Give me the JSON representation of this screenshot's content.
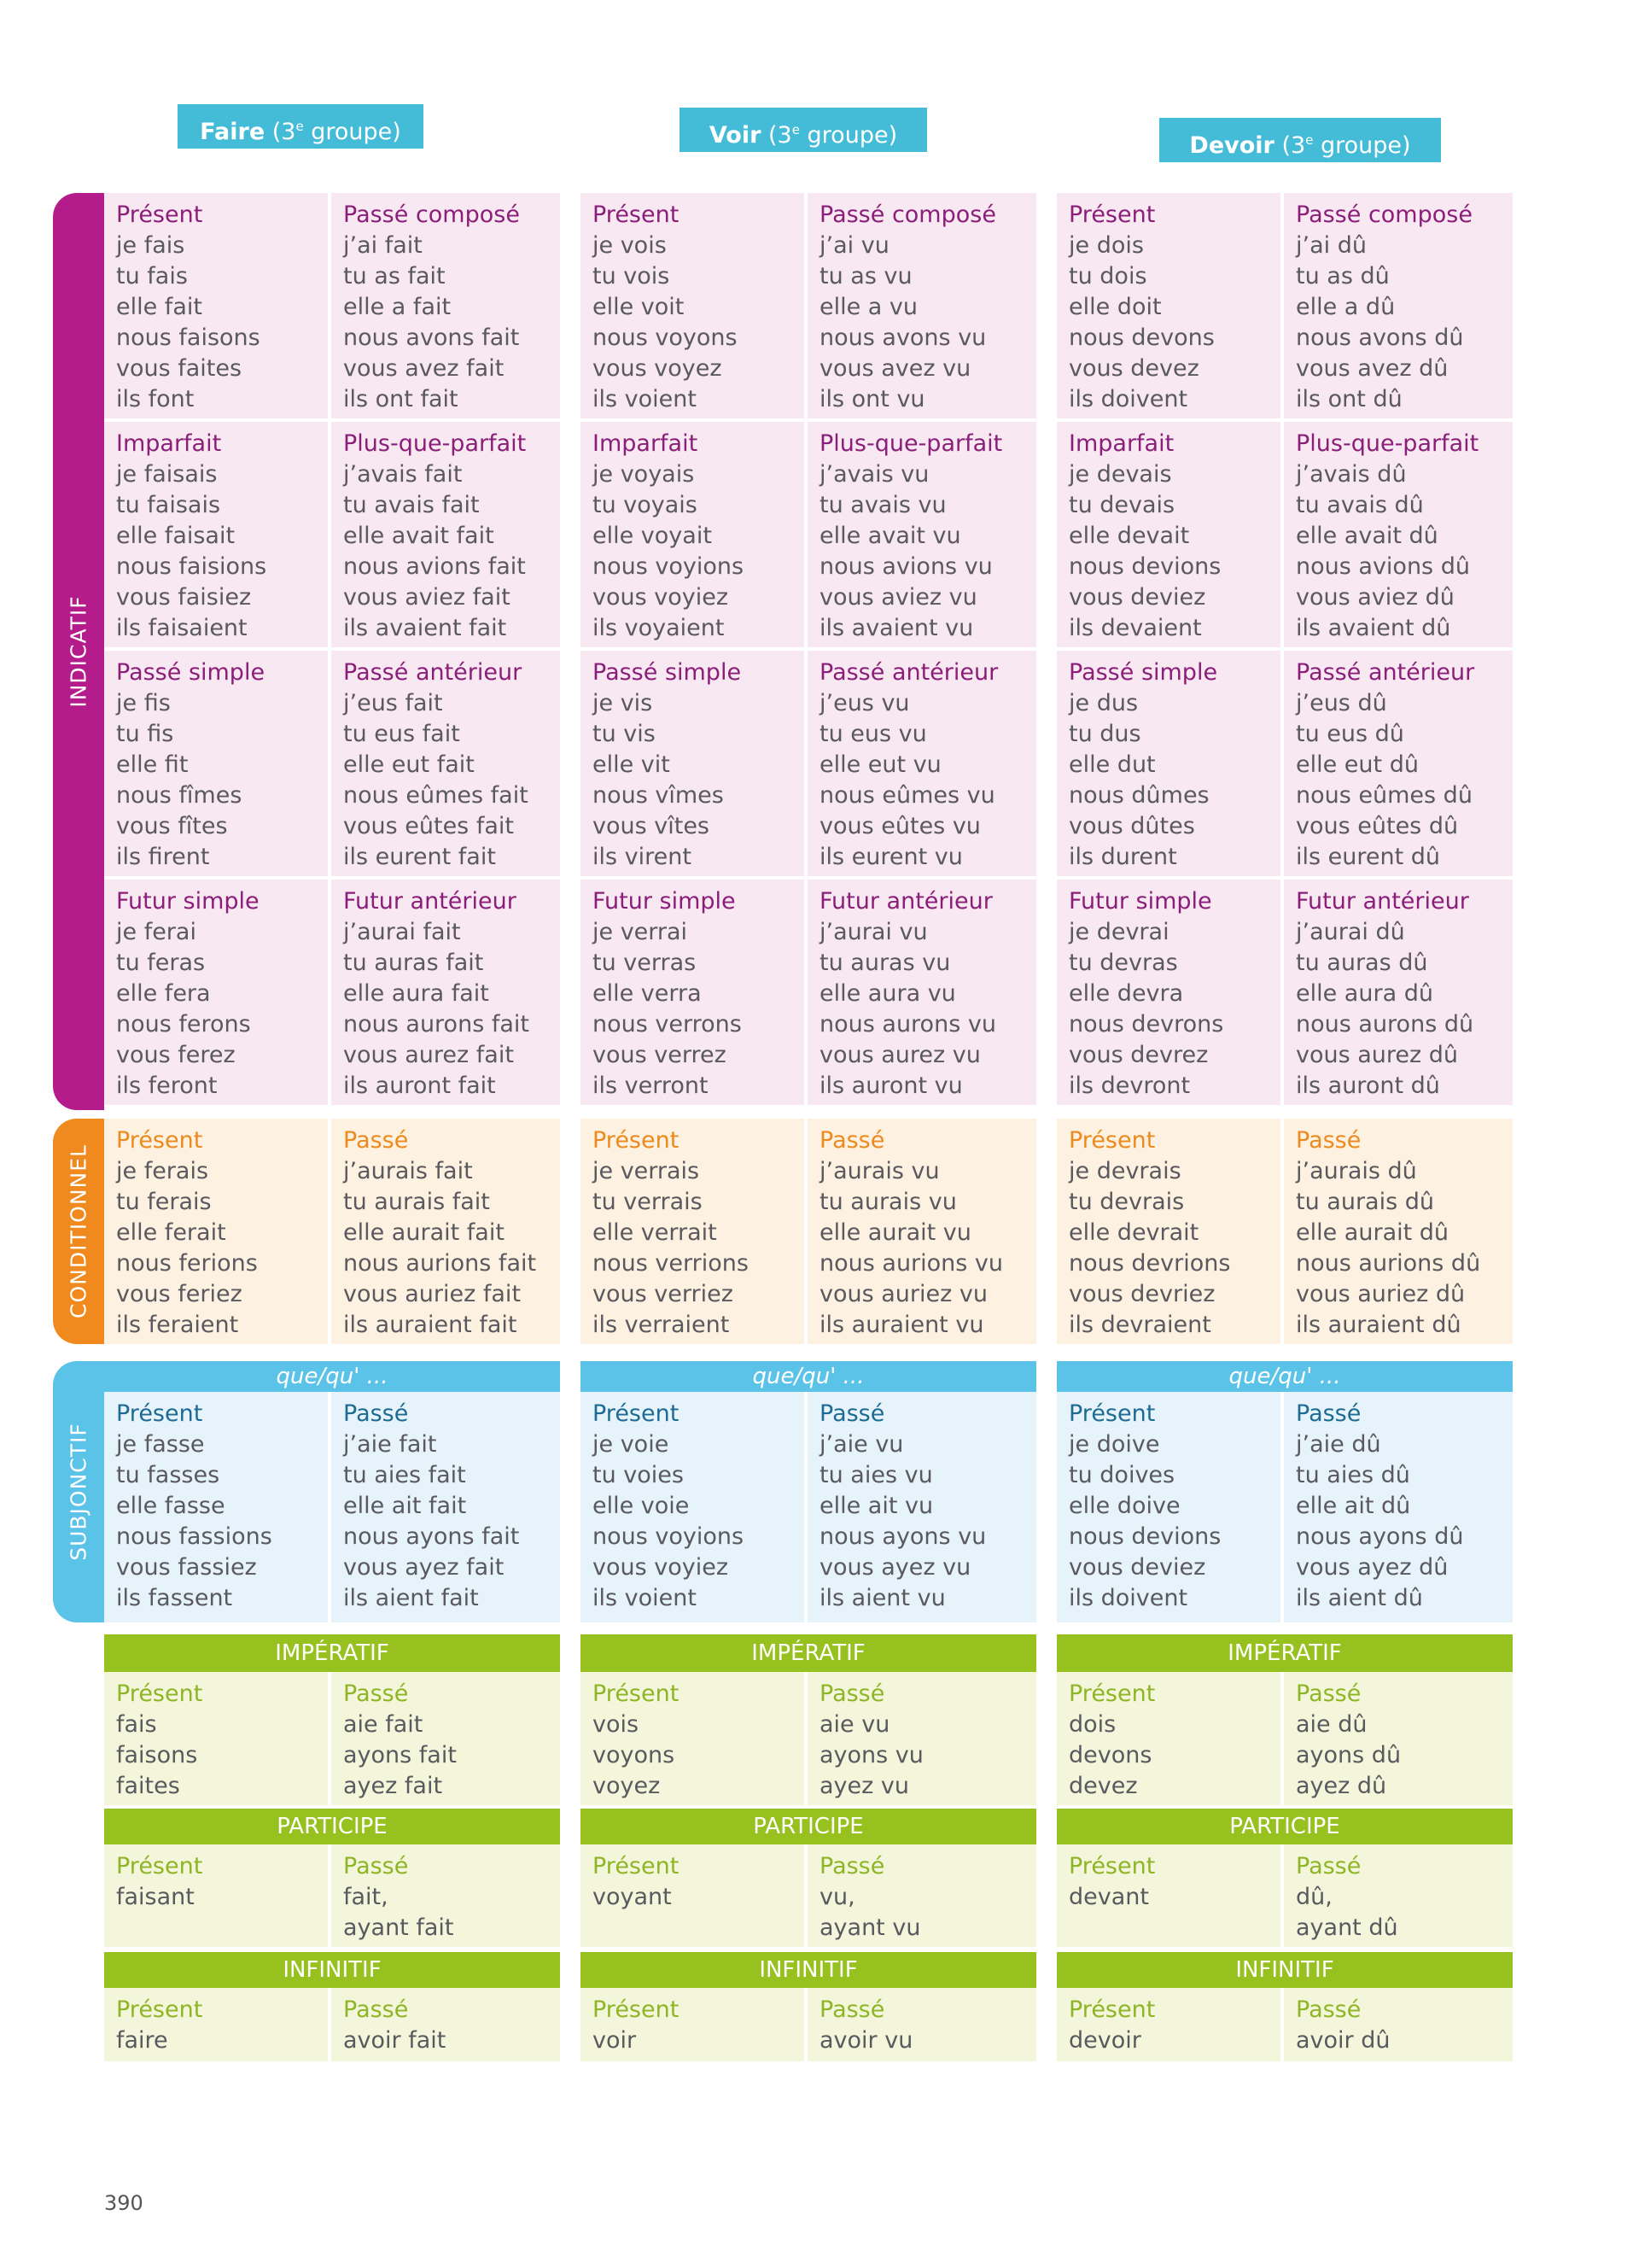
{
  "page_number": "390",
  "moods": {
    "indicatif": "INDICATIF",
    "conditionnel": "CONDITIONNEL",
    "subjonctif": "SUBJONCTIF",
    "imperatif": "IMPÉRATIF",
    "participe": "PARTICIPE",
    "infinitif": "INFINITIF"
  },
  "subj_intro": "que/qu' ...",
  "colors": {
    "indicatif": "#b41c8c",
    "conditionnel": "#f08a1e",
    "subjonctif": "#5cc3e8",
    "imperatif": "#97c11f",
    "header": "#44bcd8"
  },
  "verbs": [
    {
      "name": "Faire",
      "group_num": "3",
      "group_sup": "e",
      "group_word": "groupe",
      "ind_present": {
        "label": "Présent",
        "forms": [
          "je fais",
          "tu fais",
          "elle fait",
          "nous faisons",
          "vous faites",
          "ils font"
        ]
      },
      "ind_pc": {
        "label": "Passé composé",
        "forms": [
          "j’ai fait",
          "tu as fait",
          "elle a fait",
          "nous avons fait",
          "vous avez fait",
          "ils ont fait"
        ]
      },
      "ind_imparfait": {
        "label": "Imparfait",
        "forms": [
          "je faisais",
          "tu faisais",
          "elle faisait",
          "nous faisions",
          "vous faisiez",
          "ils faisaient"
        ]
      },
      "ind_pqp": {
        "label": "Plus-que-parfait",
        "forms": [
          "j’avais fait",
          "tu avais fait",
          "elle avait fait",
          "nous avions fait",
          "vous aviez fait",
          "ils avaient fait"
        ]
      },
      "ind_ps": {
        "label": "Passé simple",
        "forms": [
          "je fis",
          "tu fis",
          "elle fit",
          "nous fîmes",
          "vous fîtes",
          "ils firent"
        ]
      },
      "ind_pa": {
        "label": "Passé antérieur",
        "forms": [
          "j’eus fait",
          "tu eus fait",
          "elle eut fait",
          "nous eûmes fait",
          "vous eûtes fait",
          "ils eurent fait"
        ]
      },
      "ind_fs": {
        "label": "Futur simple",
        "forms": [
          "je ferai",
          "tu feras",
          "elle fera",
          "nous ferons",
          "vous ferez",
          "ils feront"
        ]
      },
      "ind_fa": {
        "label": "Futur antérieur",
        "forms": [
          "j’aurai fait",
          "tu auras fait",
          "elle aura fait",
          "nous aurons fait",
          "vous aurez fait",
          "ils auront fait"
        ]
      },
      "cond_present": {
        "label": "Présent",
        "forms": [
          "je ferais",
          "tu ferais",
          "elle ferait",
          "nous ferions",
          "vous feriez",
          "ils feraient"
        ]
      },
      "cond_passe": {
        "label": "Passé",
        "forms": [
          "j’aurais fait",
          "tu aurais fait",
          "elle aurait fait",
          "nous aurions fait",
          "vous auriez fait",
          "ils auraient fait"
        ]
      },
      "subj_present": {
        "label": "Présent",
        "forms": [
          "je fasse",
          "tu fasses",
          "elle fasse",
          "nous fassions",
          "vous fassiez",
          "ils fassent"
        ]
      },
      "subj_passe": {
        "label": "Passé",
        "forms": [
          "j’aie fait",
          "tu aies fait",
          "elle ait fait",
          "nous ayons fait",
          "vous ayez fait",
          "ils aient fait"
        ]
      },
      "imp_present": {
        "label": "Présent",
        "forms": [
          "fais",
          "faisons",
          "faites"
        ]
      },
      "imp_passe": {
        "label": "Passé",
        "forms": [
          "aie fait",
          "ayons fait",
          "ayez fait"
        ]
      },
      "part_present": {
        "label": "Présent",
        "forms": [
          "faisant"
        ]
      },
      "part_passe": {
        "label": "Passé",
        "forms": [
          "fait,",
          "ayant fait"
        ]
      },
      "inf_present": {
        "label": "Présent",
        "forms": [
          "faire"
        ]
      },
      "inf_passe": {
        "label": "Passé",
        "forms": [
          "avoir fait"
        ]
      }
    },
    {
      "name": "Voir",
      "group_num": "3",
      "group_sup": "e",
      "group_word": "groupe",
      "ind_present": {
        "label": "Présent",
        "forms": [
          "je vois",
          "tu vois",
          "elle voit",
          "nous voyons",
          "vous voyez",
          "ils voient"
        ]
      },
      "ind_pc": {
        "label": "Passé composé",
        "forms": [
          "j’ai vu",
          "tu as vu",
          "elle a vu",
          "nous avons vu",
          "vous avez vu",
          "ils ont vu"
        ]
      },
      "ind_imparfait": {
        "label": "Imparfait",
        "forms": [
          "je voyais",
          "tu voyais",
          "elle voyait",
          "nous voyions",
          "vous voyiez",
          "ils voyaient"
        ]
      },
      "ind_pqp": {
        "label": "Plus-que-parfait",
        "forms": [
          "j’avais vu",
          "tu avais vu",
          "elle avait vu",
          "nous avions vu",
          "vous aviez vu",
          "ils avaient vu"
        ]
      },
      "ind_ps": {
        "label": "Passé simple",
        "forms": [
          "je vis",
          "tu vis",
          "elle vit",
          "nous vîmes",
          "vous vîtes",
          "ils virent"
        ]
      },
      "ind_pa": {
        "label": "Passé antérieur",
        "forms": [
          "j’eus vu",
          "tu eus vu",
          "elle eut vu",
          "nous eûmes vu",
          "vous eûtes vu",
          "ils eurent vu"
        ]
      },
      "ind_fs": {
        "label": "Futur simple",
        "forms": [
          "je verrai",
          "tu verras",
          "elle verra",
          "nous verrons",
          "vous verrez",
          "ils verront"
        ]
      },
      "ind_fa": {
        "label": "Futur antérieur",
        "forms": [
          "j’aurai vu",
          "tu auras vu",
          "elle aura vu",
          "nous aurons vu",
          "vous aurez vu",
          "ils auront vu"
        ]
      },
      "cond_present": {
        "label": "Présent",
        "forms": [
          "je verrais",
          "tu verrais",
          "elle verrait",
          "nous verrions",
          "vous verriez",
          "ils verraient"
        ]
      },
      "cond_passe": {
        "label": "Passé",
        "forms": [
          "j’aurais vu",
          "tu aurais vu",
          "elle aurait vu",
          "nous aurions vu",
          "vous auriez vu",
          "ils auraient vu"
        ]
      },
      "subj_present": {
        "label": "Présent",
        "forms": [
          "je voie",
          "tu voies",
          "elle voie",
          "nous voyions",
          "vous voyiez",
          "ils voient"
        ]
      },
      "subj_passe": {
        "label": "Passé",
        "forms": [
          "j’aie vu",
          "tu aies vu",
          "elle ait vu",
          "nous ayons vu",
          "vous ayez vu",
          "ils aient vu"
        ]
      },
      "imp_present": {
        "label": "Présent",
        "forms": [
          "vois",
          "voyons",
          "voyez"
        ]
      },
      "imp_passe": {
        "label": "Passé",
        "forms": [
          "aie vu",
          "ayons vu",
          "ayez vu"
        ]
      },
      "part_present": {
        "label": "Présent",
        "forms": [
          "voyant"
        ]
      },
      "part_passe": {
        "label": "Passé",
        "forms": [
          "vu,",
          "ayant vu"
        ]
      },
      "inf_present": {
        "label": "Présent",
        "forms": [
          "voir"
        ]
      },
      "inf_passe": {
        "label": "Passé",
        "forms": [
          "avoir vu"
        ]
      }
    },
    {
      "name": "Devoir",
      "group_num": "3",
      "group_sup": "e",
      "group_word": "groupe",
      "ind_present": {
        "label": "Présent",
        "forms": [
          "je dois",
          "tu dois",
          "elle doit",
          "nous devons",
          "vous devez",
          "ils doivent"
        ]
      },
      "ind_pc": {
        "label": "Passé composé",
        "forms": [
          "j’ai dû",
          "tu as dû",
          "elle a dû",
          "nous avons dû",
          "vous avez dû",
          "ils ont dû"
        ]
      },
      "ind_imparfait": {
        "label": "Imparfait",
        "forms": [
          "je devais",
          "tu devais",
          "elle devait",
          "nous devions",
          "vous deviez",
          "ils devaient"
        ]
      },
      "ind_pqp": {
        "label": "Plus-que-parfait",
        "forms": [
          "j’avais dû",
          "tu avais dû",
          "elle avait dû",
          "nous avions dû",
          "vous aviez dû",
          "ils avaient dû"
        ]
      },
      "ind_ps": {
        "label": "Passé simple",
        "forms": [
          "je dus",
          "tu dus",
          "elle dut",
          "nous dûmes",
          "vous dûtes",
          "ils durent"
        ]
      },
      "ind_pa": {
        "label": "Passé antérieur",
        "forms": [
          "j’eus dû",
          "tu eus dû",
          "elle eut dû",
          "nous eûmes dû",
          "vous eûtes dû",
          "ils eurent dû"
        ]
      },
      "ind_fs": {
        "label": "Futur simple",
        "forms": [
          "je devrai",
          "tu devras",
          "elle devra",
          "nous devrons",
          "vous devrez",
          "ils devront"
        ]
      },
      "ind_fa": {
        "label": "Futur antérieur",
        "forms": [
          "j’aurai dû",
          "tu auras dû",
          "elle aura dû",
          "nous aurons dû",
          "vous aurez dû",
          "ils auront dû"
        ]
      },
      "cond_present": {
        "label": "Présent",
        "forms": [
          "je devrais",
          "tu devrais",
          "elle devrait",
          "nous devrions",
          "vous devriez",
          "ils devraient"
        ]
      },
      "cond_passe": {
        "label": "Passé",
        "forms": [
          "j’aurais dû",
          "tu aurais dû",
          "elle aurait dû",
          "nous aurions dû",
          "vous auriez dû",
          "ils auraient dû"
        ]
      },
      "subj_present": {
        "label": "Présent",
        "forms": [
          "je doive",
          "tu doives",
          "elle doive",
          "nous devions",
          "vous deviez",
          "ils doivent"
        ]
      },
      "subj_passe": {
        "label": "Passé",
        "forms": [
          "j’aie dû",
          "tu aies dû",
          "elle ait dû",
          "nous ayons dû",
          "vous ayez dû",
          "ils aient dû"
        ]
      },
      "imp_present": {
        "label": "Présent",
        "forms": [
          "dois",
          "devons",
          "devez"
        ]
      },
      "imp_passe": {
        "label": "Passé",
        "forms": [
          "aie dû",
          "ayons dû",
          "ayez dû"
        ]
      },
      "part_present": {
        "label": "Présent",
        "forms": [
          "devant"
        ]
      },
      "part_passe": {
        "label": "Passé",
        "forms": [
          "dû,",
          "ayant dû"
        ]
      },
      "inf_present": {
        "label": "Présent",
        "forms": [
          "devoir"
        ]
      },
      "inf_passe": {
        "label": "Passé",
        "forms": [
          "avoir dû"
        ]
      }
    }
  ]
}
